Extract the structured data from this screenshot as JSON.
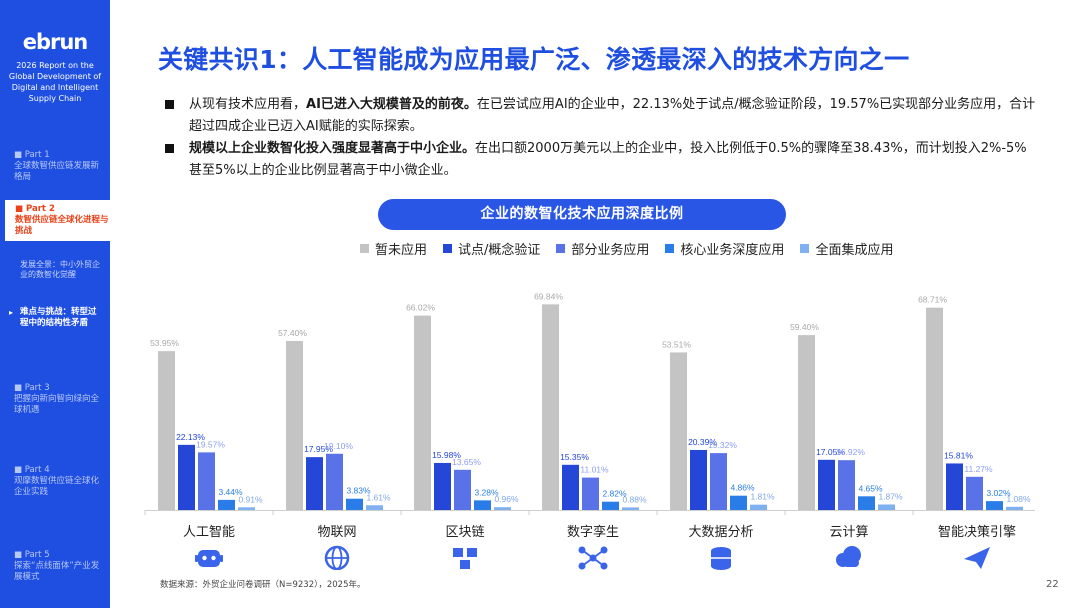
{
  "sidebar": {
    "logo": "ebrun",
    "report_title": "2026 Report on the Global Development of Digital and Intelligent Supply Chain",
    "parts": [
      {
        "part": "Part 1",
        "title": "全球数智供应链发展新格局"
      },
      {
        "part": "Part 2",
        "title": "数智供应链全球化进程与挑战"
      },
      {
        "part": "Part 3",
        "title": "把握向新向智向绿向全球机遇"
      },
      {
        "part": "Part 4",
        "title": "观摩数智供应链全球化企业实践"
      },
      {
        "part": "Part 5",
        "title": "探索“点线面体”产业发展模式"
      }
    ],
    "sub_items": [
      {
        "title": "发展全景：中小外贸企业的数智化觉醒"
      },
      {
        "title": "难点与挑战：转型过程中的结构性矛盾"
      }
    ]
  },
  "header": {
    "title": "关键共识1：人工智能成为应用最广泛、渗透最深入的技术方向之一"
  },
  "bullets": [
    {
      "bold": "AI已进入大规模普及的前夜。",
      "lead": "从现有技术应用看，",
      "text": "在已尝试应用AI的企业中，22.13%处于试点/概念验证阶段，19.57%已实现部分业务应用，合计超过四成企业已迈入AI赋能的实际探索。"
    },
    {
      "bold": "规模以上企业数智化投入强度显著高于中小企业。",
      "lead": "",
      "text": "在出口额2000万美元以上的企业中，投入比例低于0.5%的骤降至38.43%，而计划投入2%-5%甚至5%以上的企业比例显著高于中小微企业。"
    }
  ],
  "chart_data": {
    "type": "bar",
    "title": "企业的数智化技术应用深度比例",
    "categories": [
      "人工智能",
      "物联网",
      "区块链",
      "数字孪生",
      "大数据分析",
      "云计算",
      "智能决策引擎"
    ],
    "series": [
      {
        "name": "暂未应用",
        "color": "#c4c4c4",
        "values": [
          53.95,
          57.4,
          66.02,
          69.84,
          53.51,
          59.4,
          68.71
        ]
      },
      {
        "name": "试点/概念验证",
        "color": "#2447d8",
        "values": [
          22.13,
          17.95,
          15.98,
          15.35,
          20.39,
          17.05,
          15.81
        ]
      },
      {
        "name": "部分业务应用",
        "color": "#5a72e8",
        "values": [
          19.57,
          19.1,
          13.65,
          11.01,
          19.32,
          16.92,
          11.27
        ]
      },
      {
        "name": "核心业务深度应用",
        "color": "#2a7de8",
        "values": [
          3.44,
          3.83,
          3.28,
          2.82,
          4.86,
          4.65,
          3.02
        ]
      },
      {
        "name": "全面集成应用",
        "color": "#7fb0f0",
        "values": [
          0.91,
          1.61,
          0.96,
          0.88,
          1.81,
          1.87,
          1.08
        ]
      }
    ],
    "value_labels": [
      [
        "53.95%",
        "57.40%",
        "66.02%",
        "69.84%",
        "53.51%",
        "59.40%",
        "68.71%"
      ],
      [
        "22.13%",
        "17.95%",
        "15.98%",
        "15.35%",
        "20.39%",
        "17.05%",
        "15.81%"
      ],
      [
        "19.57%",
        "19.10%",
        "13.65%",
        "11.01%",
        "19.32%",
        "16.92%",
        "11.27%"
      ],
      [
        "3.44%",
        "3.83%",
        "3.28%",
        "2.82%",
        "4.86%",
        "4.65%",
        "3.02%"
      ],
      [
        "0.91%",
        "1.61%",
        "0.96%",
        "0.88%",
        "1.81%",
        "1.87%",
        "1.08%"
      ]
    ],
    "legend_position": "top",
    "grid": false,
    "ylim": [
      0,
      72
    ],
    "category_icons": [
      "robot-icon",
      "globe-network-icon",
      "blocks-icon",
      "nodes-icon",
      "database-icon",
      "cloud-icon",
      "paper-plane-icon"
    ]
  },
  "footer": {
    "source": "数据来源：外贸企业问卷调研（N=9232），2025年。",
    "page_number": "22"
  }
}
